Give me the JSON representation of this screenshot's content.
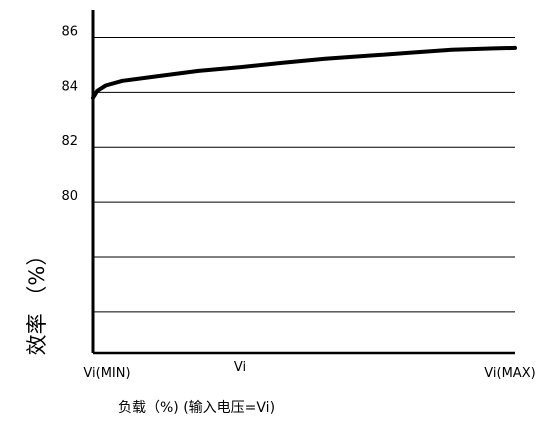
{
  "chart_data": {
    "type": "line",
    "xlabel": "负载（%) (输入电压=Vi)",
    "ylabel": "效率 （%）",
    "x_tick_labels": [
      "Vi(MIN)",
      "Vi",
      "Vi(MAX)"
    ],
    "y_tick_labels": [
      "80",
      "82",
      "84",
      "86"
    ],
    "ylim": [
      74.5,
      87
    ],
    "grid": "horizontal",
    "series": [
      {
        "x": [
          0,
          0.01,
          0.03,
          0.07,
          0.15,
          0.25,
          0.35,
          0.45,
          0.55,
          0.65,
          0.75,
          0.85,
          0.95,
          1
        ],
        "y": [
          83.8,
          84.05,
          84.25,
          84.42,
          84.58,
          84.78,
          84.92,
          85.08,
          85.22,
          85.33,
          85.44,
          85.55,
          85.6,
          85.62
        ]
      }
    ]
  }
}
